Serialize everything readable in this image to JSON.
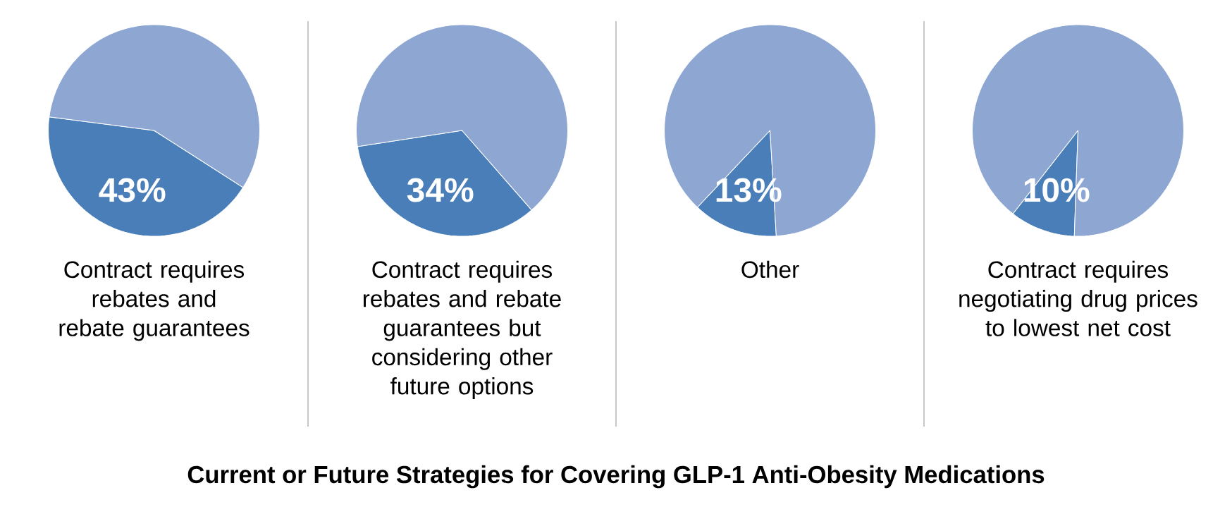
{
  "chart_data": [
    {
      "type": "pie",
      "title": "Current or Future Strategies for Covering GLP-1 Anti-Obesity Medications",
      "categories": [
        "Contract requires rebates and rebate guarantees",
        null
      ],
      "values": [
        43,
        57
      ],
      "colors": [
        "#4a7eb8",
        "#8ea6d2"
      ],
      "value_labels": [
        "43%",
        null
      ]
    },
    {
      "type": "pie",
      "categories": [
        "Contract requires rebates and rebate guarantees but considering other future options",
        null
      ],
      "values": [
        34,
        66
      ],
      "colors": [
        "#4a7eb8",
        "#8ea6d2"
      ],
      "value_labels": [
        "34%",
        null
      ]
    },
    {
      "type": "pie",
      "categories": [
        "Other",
        null
      ],
      "values": [
        13,
        87
      ],
      "colors": [
        "#4a7eb8",
        "#8ea6d2"
      ],
      "value_labels": [
        "13%",
        null
      ]
    },
    {
      "type": "pie",
      "categories": [
        "Contract requires negotiating drug prices to lowest net cost",
        null
      ],
      "values": [
        10,
        90
      ],
      "colors": [
        "#4a7eb8",
        "#8ea6d2"
      ],
      "value_labels": [
        "10%",
        null
      ]
    }
  ]
}
